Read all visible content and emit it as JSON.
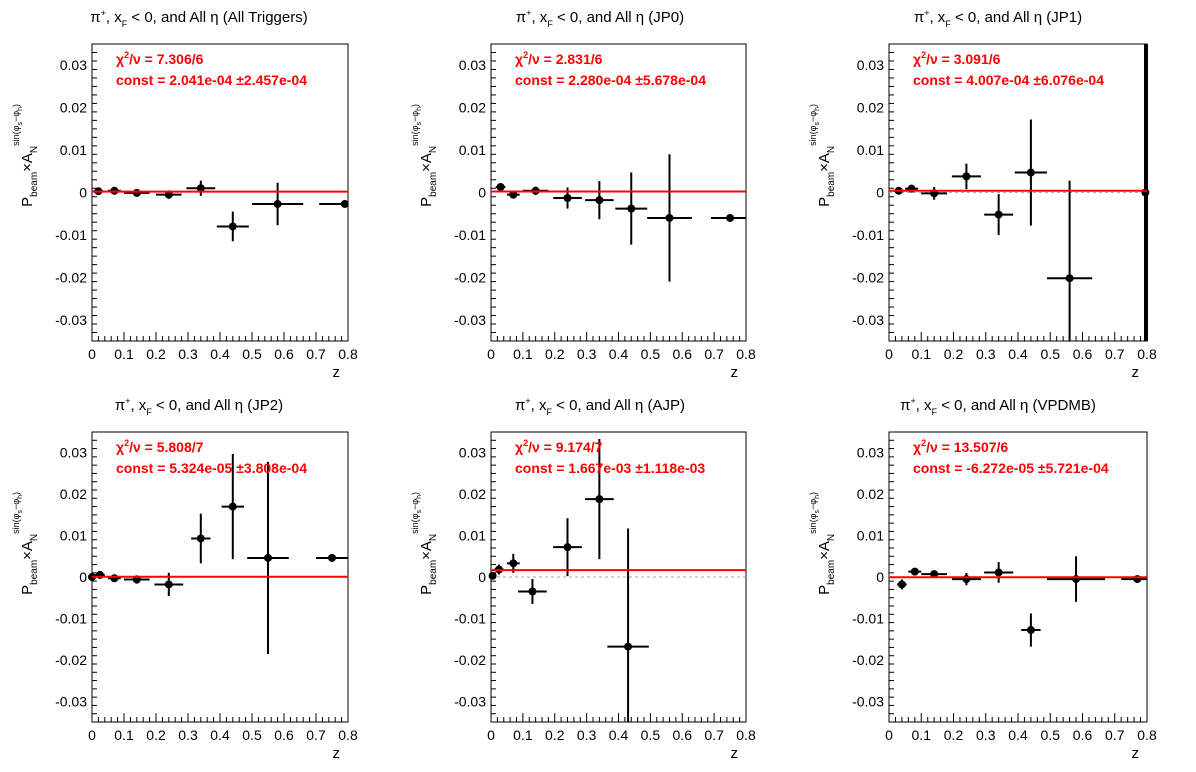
{
  "figure": {
    "background": "#ffffff",
    "fit_color": "#ff0000",
    "stat_color": "#ff0000",
    "marker_color": "#000000"
  },
  "chart_data": [
    {
      "type": "scatter",
      "title": {
        "prefix": "π",
        "sup": "+",
        "mid": ", x",
        "sub": "F",
        "suffix": " < 0, and All  η (All Triggers)"
      },
      "xlabel": "z",
      "ylabel": {
        "p": "P",
        "beam": "beam",
        "times": "×A",
        "n": "N",
        "sin": "sin(φ",
        "s": "s",
        "minus": "−φ",
        "h": "h",
        "close": ")"
      },
      "xlim": [
        0,
        0.8
      ],
      "ylim": [
        -0.035,
        0.035
      ],
      "xticks": [
        "0",
        "0.1",
        "0.2",
        "0.3",
        "0.4",
        "0.5",
        "0.6",
        "0.7",
        "0.8"
      ],
      "yticks": [
        "-0.03",
        "-0.02",
        "-0.01",
        "0",
        "0.01",
        "0.02",
        "0.03"
      ],
      "stats": {
        "chi2_label": "χ",
        "chi2_sup": "2",
        "chi2_rest": "/ν = 7.306/6",
        "const": "const = 2.041e-04  ±2.457e-04"
      },
      "fit_value": 0.0002041,
      "zero_line": false,
      "points": [
        {
          "x": 0.02,
          "y": 0.0003,
          "xerr": 0.015,
          "yerr": 0.0005
        },
        {
          "x": 0.07,
          "y": 0.0004,
          "xerr": 0.02,
          "yerr": 0.0006
        },
        {
          "x": 0.14,
          "y": -0.0001,
          "xerr": 0.04,
          "yerr": 0.0007
        },
        {
          "x": 0.24,
          "y": -0.0005,
          "xerr": 0.04,
          "yerr": 0.001
        },
        {
          "x": 0.34,
          "y": 0.001,
          "xerr": 0.045,
          "yerr": 0.0018
        },
        {
          "x": 0.44,
          "y": -0.008,
          "xerr": 0.05,
          "yerr": 0.0035
        },
        {
          "x": 0.58,
          "y": -0.0027,
          "xerr": 0.08,
          "yerr": 0.005
        },
        {
          "x": 0.79,
          "y": -0.0027,
          "xerr": 0.08,
          "yerr": 0
        }
      ]
    },
    {
      "type": "scatter",
      "title": {
        "prefix": "π",
        "sup": "+",
        "mid": ", x",
        "sub": "F",
        "suffix": " < 0, and All η (JP0)"
      },
      "xlabel": "z",
      "ylabel": {
        "p": "P",
        "beam": "beam",
        "times": "×A",
        "n": "N",
        "sin": "sin(φ",
        "s": "s",
        "minus": "−φ",
        "h": "h",
        "close": ")"
      },
      "xlim": [
        0,
        0.8
      ],
      "ylim": [
        -0.035,
        0.035
      ],
      "xticks": [
        "0",
        "0.1",
        "0.2",
        "0.3",
        "0.4",
        "0.5",
        "0.6",
        "0.7",
        "0.8"
      ],
      "yticks": [
        "-0.03",
        "-0.02",
        "-0.01",
        "0",
        "0.01",
        "0.02",
        "0.03"
      ],
      "stats": {
        "chi2_label": "χ",
        "chi2_sup": "2",
        "chi2_rest": "/ν = 2.831/6",
        "const": "const = 2.280e-04  ±5.678e-04"
      },
      "fit_value": 0.000228,
      "zero_line": false,
      "points": [
        {
          "x": 0.03,
          "y": 0.0013,
          "xerr": 0.015,
          "yerr": 0.0005
        },
        {
          "x": 0.07,
          "y": -0.0005,
          "xerr": 0.02,
          "yerr": 0.0008
        },
        {
          "x": 0.14,
          "y": 0.0004,
          "xerr": 0.04,
          "yerr": 0.001
        },
        {
          "x": 0.24,
          "y": -0.0013,
          "xerr": 0.045,
          "yerr": 0.0025
        },
        {
          "x": 0.34,
          "y": -0.0018,
          "xerr": 0.045,
          "yerr": 0.0045
        },
        {
          "x": 0.44,
          "y": -0.0038,
          "xerr": 0.05,
          "yerr": 0.0085
        },
        {
          "x": 0.56,
          "y": -0.006,
          "xerr": 0.07,
          "yerr": 0.015
        },
        {
          "x": 0.75,
          "y": -0.006,
          "xerr": 0.06,
          "yerr": 0
        }
      ]
    },
    {
      "type": "scatter",
      "title": {
        "prefix": "π",
        "sup": "+",
        "mid": ", x",
        "sub": "F",
        "suffix": " < 0, and All η (JP1)"
      },
      "xlabel": "z",
      "ylabel": {
        "p": "P",
        "beam": "beam",
        "times": "×A",
        "n": "N",
        "sin": "sin(φ",
        "s": "s",
        "minus": "−φ",
        "h": "h",
        "close": ")"
      },
      "xlim": [
        0,
        0.8
      ],
      "ylim": [
        -0.035,
        0.035
      ],
      "xticks": [
        "0",
        "0.1",
        "0.2",
        "0.3",
        "0.4",
        "0.5",
        "0.6",
        "0.7",
        "0.8"
      ],
      "yticks": [
        "-0.03",
        "-0.02",
        "-0.01",
        "0",
        "0.01",
        "0.02",
        "0.03"
      ],
      "stats": {
        "chi2_label": "χ",
        "chi2_sup": "2",
        "chi2_rest": "/ν = 3.091/6",
        "const": "const = 4.007e-04  ±6.076e-04"
      },
      "fit_value": 0.0004007,
      "zero_line": true,
      "right_bar": true,
      "points": [
        {
          "x": 0.03,
          "y": 0.0004,
          "xerr": 0.015,
          "yerr": 0.0005
        },
        {
          "x": 0.07,
          "y": 0.0009,
          "xerr": 0.02,
          "yerr": 0.0007
        },
        {
          "x": 0.14,
          "y": -0.0002,
          "xerr": 0.04,
          "yerr": 0.0015
        },
        {
          "x": 0.24,
          "y": 0.0038,
          "xerr": 0.045,
          "yerr": 0.003
        },
        {
          "x": 0.34,
          "y": -0.0052,
          "xerr": 0.045,
          "yerr": 0.0048
        },
        {
          "x": 0.44,
          "y": 0.0047,
          "xerr": 0.05,
          "yerr": 0.0125
        },
        {
          "x": 0.56,
          "y": -0.0202,
          "xerr": 0.07,
          "yerr": 0.023
        },
        {
          "x": 0.795,
          "y": 0.0,
          "xerr": 0.0,
          "yerr": 0
        }
      ]
    },
    {
      "type": "scatter",
      "title": {
        "prefix": "π",
        "sup": "+",
        "mid": ", x",
        "sub": "F",
        "suffix": " < 0, and All η (JP2)"
      },
      "xlabel": "z",
      "ylabel": {
        "p": "P",
        "beam": "beam",
        "times": "×A",
        "n": "N",
        "sin": "sin(φ",
        "s": "s",
        "minus": "−φ",
        "h": "h",
        "close": ")"
      },
      "xlim": [
        0,
        0.8
      ],
      "ylim": [
        -0.035,
        0.035
      ],
      "xticks": [
        "0",
        "0.1",
        "0.2",
        "0.3",
        "0.4",
        "0.5",
        "0.6",
        "0.7",
        "0.8"
      ],
      "yticks": [
        "-0.03",
        "-0.02",
        "-0.01",
        "0",
        "0.01",
        "0.02",
        "0.03"
      ],
      "stats": {
        "chi2_label": "χ",
        "chi2_sup": "2",
        "chi2_rest": "/ν = 5.808/7",
        "const": "const = 5.324e-05  ±3.808e-04"
      },
      "fit_value": 5.324e-05,
      "zero_line": false,
      "points": [
        {
          "x": 0.0,
          "y": 0.0,
          "xerr": 0.01,
          "yerr": 0.0004
        },
        {
          "x": 0.025,
          "y": 0.0005,
          "xerr": 0.015,
          "yerr": 0.0005
        },
        {
          "x": 0.07,
          "y": -0.0003,
          "xerr": 0.02,
          "yerr": 0.0007
        },
        {
          "x": 0.14,
          "y": -0.0006,
          "xerr": 0.04,
          "yerr": 0.001
        },
        {
          "x": 0.24,
          "y": -0.0018,
          "xerr": 0.045,
          "yerr": 0.0028
        },
        {
          "x": 0.34,
          "y": 0.0093,
          "xerr": 0.03,
          "yerr": 0.006
        },
        {
          "x": 0.44,
          "y": 0.017,
          "xerr": 0.035,
          "yerr": 0.0127
        },
        {
          "x": 0.55,
          "y": 0.0046,
          "xerr": 0.065,
          "yerr": 0.0232
        },
        {
          "x": 0.75,
          "y": 0.0046,
          "xerr": 0.05,
          "yerr": 0
        }
      ]
    },
    {
      "type": "scatter",
      "title": {
        "prefix": "π",
        "sup": "+",
        "mid": ", x",
        "sub": "F",
        "suffix": " < 0, and All η (AJP)"
      },
      "xlabel": "z",
      "ylabel": {
        "p": "P",
        "beam": "beam",
        "times": "×A",
        "n": "N",
        "sin": "sin(φ",
        "s": "s",
        "minus": "−φ",
        "h": "h",
        "close": ")"
      },
      "xlim": [
        0,
        0.8
      ],
      "ylim": [
        -0.035,
        0.035
      ],
      "xticks": [
        "0",
        "0.1",
        "0.2",
        "0.3",
        "0.4",
        "0.5",
        "0.6",
        "0.7",
        "0.8"
      ],
      "yticks": [
        "-0.03",
        "-0.02",
        "-0.01",
        "0",
        "0.01",
        "0.02",
        "0.03"
      ],
      "stats": {
        "chi2_label": "χ",
        "chi2_sup": "2",
        "chi2_rest": "/ν = 9.174/7",
        "const": "const = 1.667e-03  ±1.118e-03"
      },
      "fit_value": 0.001667,
      "zero_line": true,
      "points": [
        {
          "x": 0.005,
          "y": 0.0003,
          "xerr": 0.008,
          "yerr": 0.0005
        },
        {
          "x": 0.025,
          "y": 0.0018,
          "xerr": 0.015,
          "yerr": 0.0012
        },
        {
          "x": 0.07,
          "y": 0.0033,
          "xerr": 0.02,
          "yerr": 0.0023
        },
        {
          "x": 0.13,
          "y": -0.0035,
          "xerr": 0.045,
          "yerr": 0.003
        },
        {
          "x": 0.24,
          "y": 0.0072,
          "xerr": 0.045,
          "yerr": 0.007
        },
        {
          "x": 0.34,
          "y": 0.0188,
          "xerr": 0.045,
          "yerr": 0.0145
        },
        {
          "x": 0.43,
          "y": -0.0168,
          "xerr": 0.065,
          "yerr": 0.0285
        }
      ]
    },
    {
      "type": "scatter",
      "title": {
        "prefix": "π",
        "sup": "+",
        "mid": ", x",
        "sub": "F",
        "suffix": " < 0, and All  η (VPDMB)"
      },
      "xlabel": "z",
      "ylabel": {
        "p": "P",
        "beam": "beam",
        "times": "×A",
        "n": "N",
        "sin": "sin(φ",
        "s": "s",
        "minus": "−φ",
        "h": "h",
        "close": ")"
      },
      "xlim": [
        0,
        0.8
      ],
      "ylim": [
        -0.035,
        0.035
      ],
      "xticks": [
        "0",
        "0.1",
        "0.2",
        "0.3",
        "0.4",
        "0.5",
        "0.6",
        "0.7",
        "0.8"
      ],
      "yticks": [
        "-0.03",
        "-0.02",
        "-0.01",
        "0",
        "0.01",
        "0.02",
        "0.03"
      ],
      "stats": {
        "chi2_label": "χ",
        "chi2_sup": "2",
        "chi2_rest": "/ν = 13.507/6",
        "const": "const = -6.272e-05  ±5.721e-04"
      },
      "fit_value": -6.272e-05,
      "zero_line": false,
      "points": [
        {
          "x": 0.04,
          "y": -0.0018,
          "xerr": 0.015,
          "yerr": 0.0012
        },
        {
          "x": 0.08,
          "y": 0.0013,
          "xerr": 0.02,
          "yerr": 0.0008
        },
        {
          "x": 0.14,
          "y": 0.0007,
          "xerr": 0.04,
          "yerr": 0.0008
        },
        {
          "x": 0.24,
          "y": -0.0005,
          "xerr": 0.045,
          "yerr": 0.0015
        },
        {
          "x": 0.34,
          "y": 0.0011,
          "xerr": 0.045,
          "yerr": 0.0025
        },
        {
          "x": 0.44,
          "y": -0.0128,
          "xerr": 0.03,
          "yerr": 0.004
        },
        {
          "x": 0.58,
          "y": -0.0005,
          "xerr": 0.09,
          "yerr": 0.0055
        },
        {
          "x": 0.77,
          "y": -0.0005,
          "xerr": 0.05,
          "yerr": 0
        }
      ]
    }
  ]
}
